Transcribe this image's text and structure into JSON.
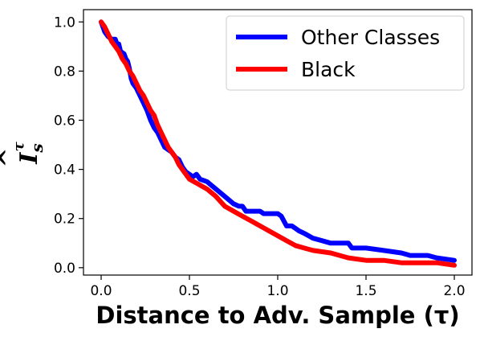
{
  "chart_data": {
    "type": "line",
    "xlabel": "Distance to Adv. Sample (τ)",
    "ylabel": "Îₛᵗ",
    "ylabel_parts": {
      "base": "I",
      "sub": "s",
      "sup": "τ"
    },
    "xlim": [
      -0.1,
      2.1
    ],
    "ylim": [
      -0.03,
      1.05
    ],
    "x_ticks": [
      0.0,
      0.5,
      1.0,
      1.5,
      2.0
    ],
    "x_tick_labels": [
      "0.0",
      "0.5",
      "1.0",
      "1.5",
      "2.0"
    ],
    "y_ticks": [
      0.0,
      0.2,
      0.4,
      0.6,
      0.8,
      1.0
    ],
    "y_tick_labels": [
      "0.0",
      "0.2",
      "0.4",
      "0.6",
      "0.8",
      "1.0"
    ],
    "grid": false,
    "legend_position": "top-right",
    "series": [
      {
        "name": "Other Classes",
        "color": "#0000ff",
        "points": [
          [
            0.0,
            1.0
          ],
          [
            0.01,
            0.98
          ],
          [
            0.02,
            0.96
          ],
          [
            0.04,
            0.94
          ],
          [
            0.06,
            0.93
          ],
          [
            0.08,
            0.93
          ],
          [
            0.09,
            0.91
          ],
          [
            0.1,
            0.91
          ],
          [
            0.11,
            0.88
          ],
          [
            0.13,
            0.87
          ],
          [
            0.14,
            0.85
          ],
          [
            0.15,
            0.84
          ],
          [
            0.16,
            0.81
          ],
          [
            0.17,
            0.77
          ],
          [
            0.18,
            0.75
          ],
          [
            0.2,
            0.73
          ],
          [
            0.22,
            0.7
          ],
          [
            0.24,
            0.67
          ],
          [
            0.26,
            0.64
          ],
          [
            0.28,
            0.6
          ],
          [
            0.3,
            0.57
          ],
          [
            0.32,
            0.55
          ],
          [
            0.34,
            0.52
          ],
          [
            0.36,
            0.49
          ],
          [
            0.38,
            0.48
          ],
          [
            0.4,
            0.47
          ],
          [
            0.42,
            0.45
          ],
          [
            0.44,
            0.44
          ],
          [
            0.46,
            0.41
          ],
          [
            0.48,
            0.39
          ],
          [
            0.5,
            0.38
          ],
          [
            0.52,
            0.37
          ],
          [
            0.54,
            0.38
          ],
          [
            0.56,
            0.36
          ],
          [
            0.6,
            0.35
          ],
          [
            0.65,
            0.32
          ],
          [
            0.7,
            0.29
          ],
          [
            0.75,
            0.26
          ],
          [
            0.78,
            0.25
          ],
          [
            0.8,
            0.25
          ],
          [
            0.82,
            0.23
          ],
          [
            0.85,
            0.23
          ],
          [
            0.9,
            0.23
          ],
          [
            0.92,
            0.22
          ],
          [
            1.0,
            0.22
          ],
          [
            1.02,
            0.21
          ],
          [
            1.05,
            0.17
          ],
          [
            1.08,
            0.17
          ],
          [
            1.1,
            0.16
          ],
          [
            1.12,
            0.15
          ],
          [
            1.15,
            0.14
          ],
          [
            1.2,
            0.12
          ],
          [
            1.25,
            0.11
          ],
          [
            1.3,
            0.1
          ],
          [
            1.4,
            0.1
          ],
          [
            1.42,
            0.08
          ],
          [
            1.5,
            0.08
          ],
          [
            1.6,
            0.07
          ],
          [
            1.7,
            0.06
          ],
          [
            1.75,
            0.05
          ],
          [
            1.85,
            0.05
          ],
          [
            1.9,
            0.04
          ],
          [
            2.0,
            0.03
          ]
        ]
      },
      {
        "name": "Black",
        "color": "#ff0000",
        "points": [
          [
            0.0,
            1.0
          ],
          [
            0.02,
            0.98
          ],
          [
            0.04,
            0.95
          ],
          [
            0.06,
            0.92
          ],
          [
            0.08,
            0.9
          ],
          [
            0.1,
            0.88
          ],
          [
            0.12,
            0.85
          ],
          [
            0.14,
            0.83
          ],
          [
            0.16,
            0.8
          ],
          [
            0.18,
            0.78
          ],
          [
            0.2,
            0.75
          ],
          [
            0.22,
            0.72
          ],
          [
            0.24,
            0.7
          ],
          [
            0.26,
            0.67
          ],
          [
            0.28,
            0.64
          ],
          [
            0.3,
            0.62
          ],
          [
            0.32,
            0.58
          ],
          [
            0.34,
            0.55
          ],
          [
            0.36,
            0.52
          ],
          [
            0.38,
            0.49
          ],
          [
            0.4,
            0.47
          ],
          [
            0.42,
            0.45
          ],
          [
            0.44,
            0.42
          ],
          [
            0.46,
            0.4
          ],
          [
            0.48,
            0.38
          ],
          [
            0.5,
            0.36
          ],
          [
            0.55,
            0.34
          ],
          [
            0.6,
            0.32
          ],
          [
            0.65,
            0.29
          ],
          [
            0.7,
            0.25
          ],
          [
            0.75,
            0.23
          ],
          [
            0.8,
            0.21
          ],
          [
            0.85,
            0.19
          ],
          [
            0.9,
            0.17
          ],
          [
            0.95,
            0.15
          ],
          [
            1.0,
            0.13
          ],
          [
            1.05,
            0.11
          ],
          [
            1.1,
            0.09
          ],
          [
            1.15,
            0.08
          ],
          [
            1.2,
            0.07
          ],
          [
            1.3,
            0.06
          ],
          [
            1.4,
            0.04
          ],
          [
            1.5,
            0.03
          ],
          [
            1.6,
            0.03
          ],
          [
            1.7,
            0.02
          ],
          [
            1.8,
            0.02
          ],
          [
            1.9,
            0.02
          ],
          [
            2.0,
            0.01
          ]
        ]
      }
    ]
  }
}
